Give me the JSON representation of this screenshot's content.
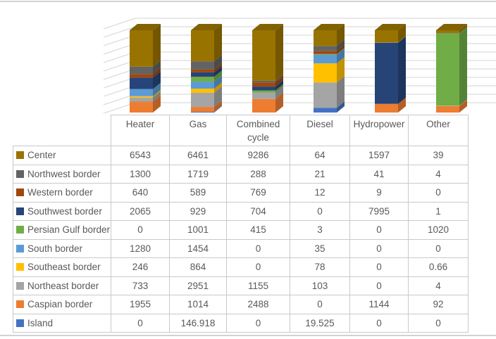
{
  "window": {
    "background": "#FFFFFF",
    "frame_border_color": "#D2D2D2"
  },
  "chart_data": {
    "type": "bar",
    "subtype": "3d-100-percent-stacked-column",
    "title": "",
    "xlabel": "",
    "ylabel": "",
    "categories": [
      "Heater",
      "Gas",
      "Combined cycle",
      "Diesel",
      "Hydropower",
      "Other"
    ],
    "series": [
      {
        "name": "Center",
        "color": "#997300",
        "values": [
          6543,
          6461,
          9286,
          64,
          1597,
          39
        ]
      },
      {
        "name": "Northwest border",
        "color": "#636363",
        "values": [
          1300,
          1719,
          288,
          21,
          41,
          4
        ]
      },
      {
        "name": "Western border",
        "color": "#9E480E",
        "values": [
          640,
          589,
          769,
          12,
          9,
          0
        ]
      },
      {
        "name": "Southwest border",
        "color": "#264478",
        "values": [
          2065,
          929,
          704,
          0,
          7995,
          1
        ]
      },
      {
        "name": "Persian Gulf border",
        "color": "#70AD47",
        "values": [
          0,
          1001,
          415,
          3,
          0,
          1020
        ]
      },
      {
        "name": "South border",
        "color": "#5B9BD5",
        "values": [
          1280,
          1454,
          0,
          35,
          0,
          0
        ]
      },
      {
        "name": "Southeast border",
        "color": "#FFC000",
        "values": [
          246,
          864,
          0,
          78,
          0,
          0.66
        ]
      },
      {
        "name": "Northeast border",
        "color": "#A5A5A5",
        "values": [
          733,
          2951,
          1155,
          103,
          0,
          4
        ]
      },
      {
        "name": "Caspian border",
        "color": "#ED7D31",
        "values": [
          1955,
          1014,
          2488,
          0,
          1144,
          92
        ]
      },
      {
        "name": "Island",
        "color": "#4472C4",
        "values": [
          0,
          146.918,
          0,
          19.525,
          0,
          0
        ]
      }
    ],
    "stack_order_bottom_to_top": [
      "Island",
      "Caspian border",
      "Northeast border",
      "Southeast border",
      "South border",
      "Persian Gulf border",
      "Southwest border",
      "Western border",
      "Northwest border",
      "Center"
    ],
    "axis": {
      "y_min_percent": 0,
      "y_max_percent": 100,
      "gridline_count": 11,
      "gridline_color": "#DCDCDC",
      "grid": true
    },
    "legend_position": "data-table-row-headers",
    "data_table_shown": true
  },
  "table": {
    "corner_cell": "",
    "column_headers": [
      "Heater",
      "Gas",
      "Combined cycle",
      "Diesel",
      "Hydropower",
      "Other"
    ],
    "border_color": "#C7C9CC",
    "text_color": "#595959"
  }
}
